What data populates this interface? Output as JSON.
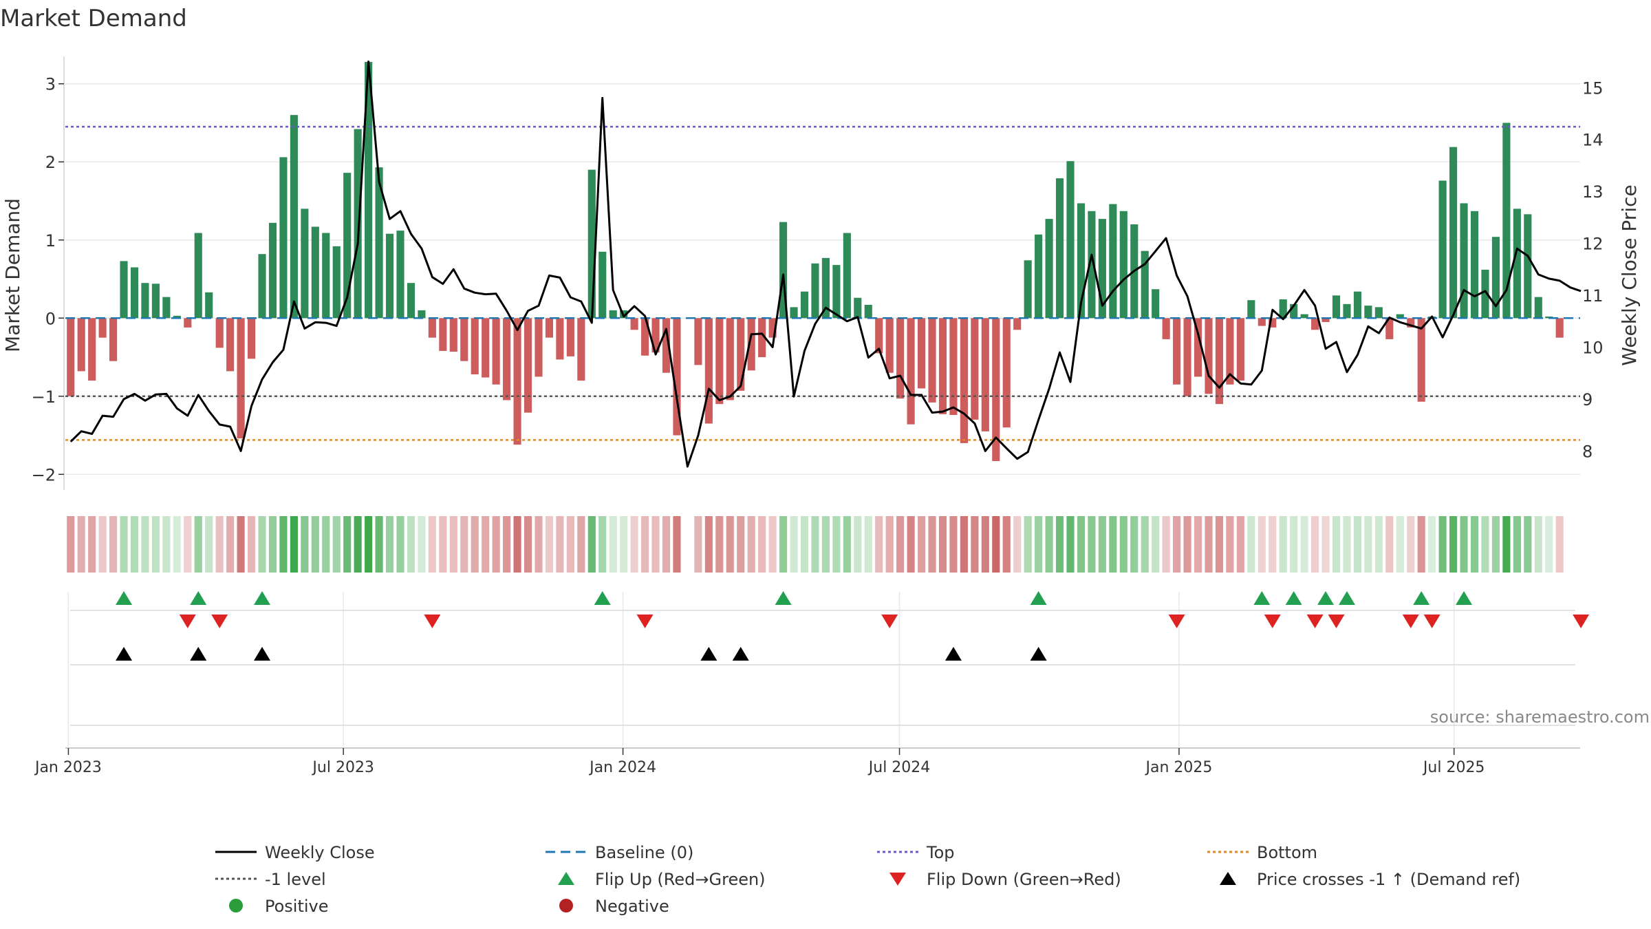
{
  "chart_data": {
    "type": "bar",
    "title": "Market Demand",
    "ylabel": "Market Demand",
    "y2label": "Weekly Close Price",
    "ylim": [
      -2.2,
      3.35
    ],
    "y2lim": [
      7.25,
      15.6
    ],
    "yticks": [
      -2,
      -1,
      0,
      1,
      2,
      3
    ],
    "yticklabels": [
      "−2",
      "−1",
      "0",
      "1",
      "2",
      "3"
    ],
    "y2ticks": [
      8,
      9,
      10,
      11,
      12,
      13,
      14,
      15
    ],
    "y2ticklabels": [
      "8",
      "9",
      "10",
      "11",
      "12",
      "13",
      "14",
      "15"
    ],
    "xstart": "2022-12-30",
    "xend": "2025-09-22",
    "xticks": [
      {
        "date": "2023-01-01",
        "label": "Jan 2023"
      },
      {
        "date": "2023-07-01",
        "label": "Jul 2023"
      },
      {
        "date": "2024-01-01",
        "label": "Jan 2024"
      },
      {
        "date": "2024-07-01",
        "label": "Jul 2024"
      },
      {
        "date": "2025-01-01",
        "label": "Jan 2025"
      },
      {
        "date": "2025-07-01",
        "label": "Jul 2025"
      }
    ],
    "week_start": "2022-12-30",
    "demand": [
      -1.0,
      -0.68,
      -0.8,
      -0.25,
      -0.55,
      0.73,
      0.65,
      0.45,
      0.44,
      0.27,
      0.03,
      -0.12,
      1.09,
      0.33,
      -0.38,
      -0.68,
      -1.54,
      -0.52,
      0.82,
      1.22,
      2.06,
      2.6,
      1.4,
      1.17,
      1.09,
      0.92,
      1.86,
      2.42,
      3.28,
      1.93,
      1.08,
      1.12,
      0.45,
      0.1,
      -0.25,
      -0.42,
      -0.43,
      -0.55,
      -0.72,
      -0.76,
      -0.85,
      -1.05,
      -1.62,
      -1.21,
      -0.75,
      -0.25,
      -0.53,
      -0.49,
      -0.8,
      1.9,
      0.85,
      0.1,
      0.1,
      -0.15,
      -0.48,
      -0.44,
      -0.7,
      -1.5,
      0.0,
      -0.6,
      -1.35,
      -1.1,
      -1.05,
      -0.93,
      -0.67,
      -0.5,
      -0.25,
      1.23,
      0.14,
      0.34,
      0.7,
      0.77,
      0.68,
      1.09,
      0.26,
      0.17,
      -0.45,
      -0.7,
      -1.03,
      -1.36,
      -0.9,
      -1.08,
      -1.23,
      -1.24,
      -1.6,
      -1.3,
      -1.45,
      -1.83,
      -1.4,
      -0.15,
      0.74,
      1.07,
      1.27,
      1.79,
      2.01,
      1.47,
      1.37,
      1.27,
      1.46,
      1.37,
      1.2,
      0.86,
      0.37,
      -0.27,
      -0.85,
      -1.0,
      -0.75,
      -0.97,
      -1.1,
      -0.85,
      -0.8,
      0.23,
      -0.1,
      -0.12,
      0.24,
      0.18,
      0.05,
      -0.15,
      -0.05,
      0.29,
      0.18,
      0.34,
      0.16,
      0.14,
      -0.27,
      0.05,
      -0.12,
      -1.07,
      0.02,
      1.76,
      2.19,
      1.47,
      1.37,
      0.62,
      1.04,
      2.5,
      1.4,
      1.33,
      0.27,
      0.02,
      -0.25
    ],
    "price": [
      8.18,
      8.38,
      8.33,
      8.68,
      8.66,
      9.0,
      9.1,
      8.97,
      9.09,
      9.1,
      8.82,
      8.68,
      9.08,
      8.77,
      8.51,
      8.47,
      8.0,
      8.87,
      9.38,
      9.71,
      9.95,
      10.88,
      10.36,
      10.48,
      10.47,
      10.41,
      10.96,
      12.0,
      15.5,
      13.18,
      12.47,
      12.62,
      12.18,
      11.9,
      11.35,
      11.22,
      11.5,
      11.13,
      11.05,
      11.02,
      11.03,
      10.7,
      10.33,
      10.7,
      10.8,
      11.38,
      11.34,
      10.96,
      10.88,
      10.47,
      14.8,
      11.1,
      10.59,
      10.79,
      10.6,
      9.86,
      10.35,
      9.0,
      7.7,
      8.3,
      9.2,
      8.98,
      9.05,
      9.25,
      10.25,
      10.26,
      10.0,
      11.4,
      9.05,
      9.93,
      10.45,
      10.76,
      10.63,
      10.5,
      10.58,
      9.8,
      9.97,
      9.4,
      9.45,
      9.08,
      9.08,
      8.74,
      8.76,
      8.84,
      8.72,
      8.53,
      8.0,
      8.26,
      8.05,
      7.85,
      7.98,
      8.6,
      9.2,
      9.9,
      9.33,
      10.86,
      11.78,
      10.8,
      11.08,
      11.3,
      11.47,
      11.6,
      11.85,
      12.1,
      11.38,
      10.98,
      10.26,
      9.45,
      9.22,
      9.48,
      9.3,
      9.28,
      9.55,
      10.72,
      10.54,
      10.8,
      11.1,
      10.8,
      9.97,
      10.1,
      9.52,
      9.85,
      10.4,
      10.27,
      10.57,
      10.48,
      10.42,
      10.36,
      10.59,
      10.19,
      10.62,
      11.1,
      10.98,
      11.08,
      10.79,
      11.1,
      11.9,
      11.76,
      11.4,
      11.32,
      11.28,
      11.15,
      11.08
    ],
    "reference_lines": {
      "top": 2.45,
      "minus_one": -1,
      "bottom": -1.56,
      "baseline": 0
    },
    "flip_up_weeks": [
      5,
      12,
      18,
      50,
      67,
      91,
      112,
      115,
      118,
      120,
      127,
      131
    ],
    "flip_down_weeks": [
      11,
      14,
      34,
      54,
      77,
      104,
      113,
      117,
      119,
      126,
      128,
      142
    ],
    "price_cross_weeks": [
      5,
      12,
      18,
      60,
      63,
      83,
      91
    ],
    "source": "source: sharemaestro.com",
    "legend": [
      {
        "label": "Weekly Close",
        "kind": "line-solid",
        "color": "#000000"
      },
      {
        "label": "Baseline (0)",
        "kind": "line-dashed",
        "color": "#1f77b4"
      },
      {
        "label": "Top",
        "kind": "line-dotted",
        "color": "#6a5acd"
      },
      {
        "label": "Bottom",
        "kind": "line-dotted",
        "color": "#e08a1e"
      },
      {
        "label": "-1 level",
        "kind": "line-dotted",
        "color": "#555555"
      },
      {
        "label": "Flip Up (Red→Green)",
        "kind": "tri-up",
        "color": "#22a050"
      },
      {
        "label": "Flip Down (Green→Red)",
        "kind": "tri-down",
        "color": "#dd2222"
      },
      {
        "label": "Price crosses -1 ↑ (Demand ref)",
        "kind": "tri-up",
        "color": "#000000"
      },
      {
        "label": "Positive",
        "kind": "dot",
        "color": "#2a9d3a"
      },
      {
        "label": "Negative",
        "kind": "dot",
        "color": "#b22222"
      }
    ],
    "colors": {
      "positive": "#2e8b57",
      "negative": "#cd5c5c",
      "grid": "#e8e8e8"
    }
  }
}
